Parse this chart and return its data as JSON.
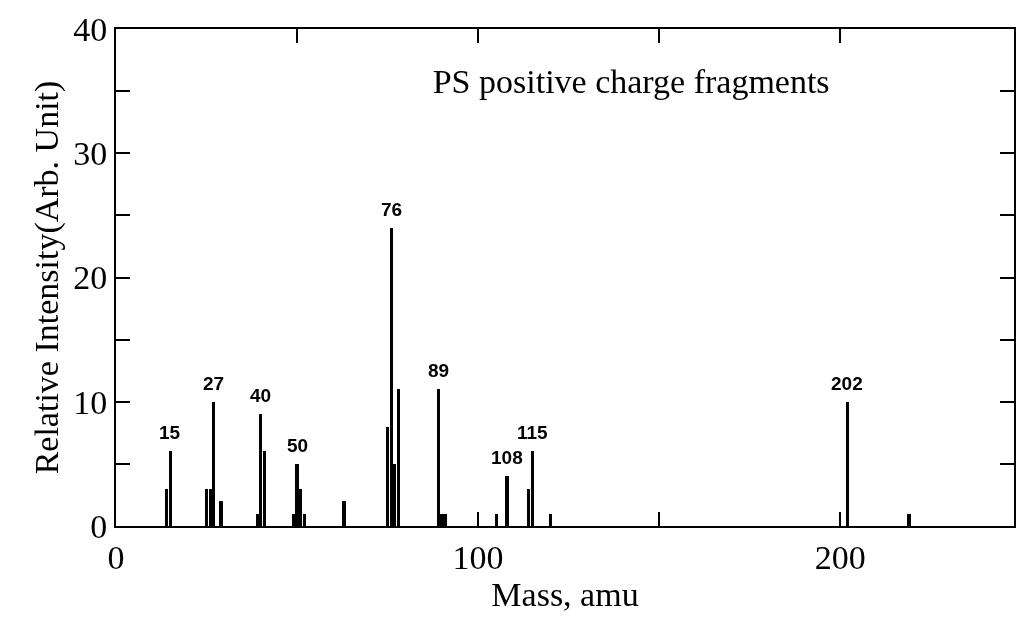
{
  "chart_data": {
    "type": "bar",
    "title": "PS positive charge fragments",
    "xlabel": "Mass, amu",
    "ylabel": "Relative Intensity(Arb. Unit)",
    "x": [
      14,
      15,
      25,
      26,
      27,
      29,
      39,
      40,
      41,
      49,
      50,
      51,
      52,
      63,
      75,
      76,
      77,
      78,
      89,
      90,
      91,
      105,
      108,
      114,
      115,
      120,
      202,
      219
    ],
    "values": [
      3,
      6,
      3,
      3,
      10,
      2,
      1,
      9,
      6,
      1,
      5,
      3,
      1,
      2,
      8,
      24,
      5,
      11,
      11,
      1,
      1,
      1,
      4,
      3,
      6,
      1,
      10,
      1
    ],
    "color": "#000000",
    "xlim": [
      0,
      248
    ],
    "xticks": [
      0,
      {
        "value": 50,
        "label": null
      },
      100,
      {
        "value": 150,
        "label": null
      },
      200
    ],
    "ylim": [
      0,
      40
    ],
    "yticks": [
      0,
      {
        "value": 5,
        "label": null
      },
      10,
      {
        "value": 15,
        "label": null
      },
      20,
      {
        "value": 25,
        "label": null
      },
      30,
      {
        "value": 35,
        "label": null
      },
      40
    ],
    "annotations": [
      {
        "text": "15",
        "x": 15,
        "y": 6
      },
      {
        "text": "27",
        "x": 27,
        "y": 10
      },
      {
        "text": "40",
        "x": 40,
        "y": 9
      },
      {
        "text": "50",
        "x": 50,
        "y": 5
      },
      {
        "text": "76",
        "x": 76,
        "y": 24
      },
      {
        "text": "89",
        "x": 89,
        "y": 11
      },
      {
        "text": "108",
        "x": 108,
        "y": 4
      },
      {
        "text": "115",
        "x": 115,
        "y": 6
      },
      {
        "text": "202",
        "x": 202,
        "y": 10
      }
    ]
  }
}
